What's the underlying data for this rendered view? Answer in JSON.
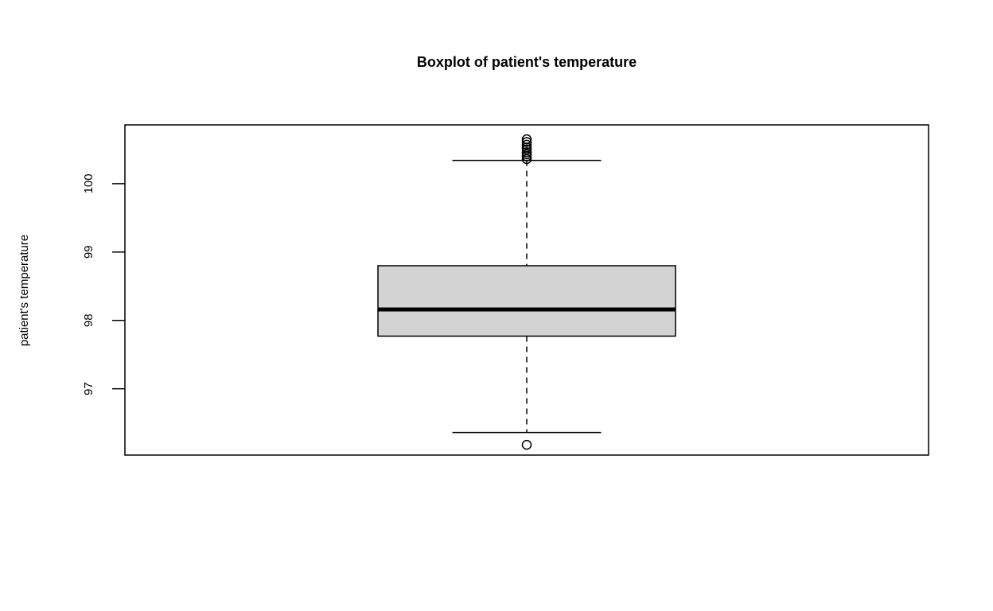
{
  "chart_data": {
    "type": "boxplot",
    "title": "Boxplot of patient's temperature",
    "xlabel": "",
    "ylabel": "patient's temperature",
    "ylim": [
      96.03,
      100.86
    ],
    "yticks": [
      97,
      98,
      99,
      100
    ],
    "grid": false,
    "legend": "none",
    "box_fill": "#d3d3d3",
    "line_color": "#000000",
    "boxes": [
      {
        "whisker_low": 96.36,
        "q1": 97.77,
        "median": 98.16,
        "q3": 98.8,
        "whisker_high": 100.34,
        "outliers": [
          96.18,
          100.36,
          100.4,
          100.43,
          100.46,
          100.5,
          100.53,
          100.57,
          100.61,
          100.65
        ]
      }
    ]
  }
}
